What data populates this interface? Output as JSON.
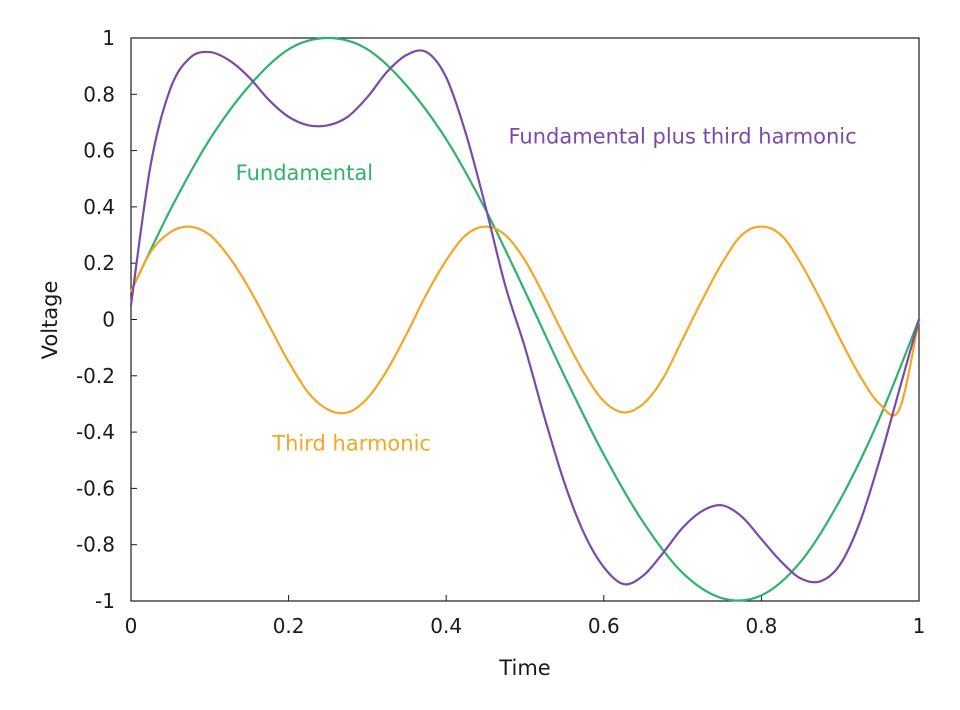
{
  "chart_data": {
    "type": "line",
    "title": "",
    "xlabel": "Time",
    "ylabel": "Voltage",
    "xlim": [
      0,
      1
    ],
    "ylim": [
      -1,
      1
    ],
    "x_ticks": [
      0,
      0.2,
      0.4,
      0.6,
      0.8,
      1
    ],
    "x_tick_labels": [
      "0",
      "0.2",
      "0.4",
      "0.6",
      "0.8",
      "1"
    ],
    "y_ticks": [
      1,
      0.8,
      0.6,
      0.4,
      0.2,
      0,
      -0.2,
      -0.4,
      -0.6,
      -0.8,
      -1
    ],
    "y_tick_labels": [
      "1",
      "0.8",
      "0.6",
      "0.4",
      "0.2",
      "0",
      "-0.2",
      "-0.4",
      "-0.6",
      "-0.8",
      "-1"
    ],
    "grid": false,
    "series": [
      {
        "name": "Fundamental",
        "color": "#2db36a",
        "x": [
          0,
          0.05,
          0.1,
          0.15,
          0.2,
          0.25,
          0.3,
          0.35,
          0.4,
          0.45,
          0.5,
          0.55,
          0.6,
          0.65,
          0.7,
          0.75,
          0.8,
          0.85,
          0.9,
          0.95,
          1
        ],
        "y": [
          0.1,
          0.39,
          0.64,
          0.83,
          0.96,
          1.0,
          0.96,
          0.83,
          0.64,
          0.39,
          0.1,
          -0.2,
          -0.48,
          -0.72,
          -0.9,
          -0.99,
          -0.98,
          -0.86,
          -0.64,
          -0.35,
          0
        ]
      },
      {
        "name": "Third harmonic",
        "color": "#f5a623",
        "x": [
          0,
          0.025,
          0.05,
          0.075,
          0.1,
          0.125,
          0.15,
          0.175,
          0.2,
          0.225,
          0.25,
          0.275,
          0.3,
          0.325,
          0.35,
          0.375,
          0.4,
          0.425,
          0.45,
          0.475,
          0.5,
          0.525,
          0.55,
          0.575,
          0.6,
          0.625,
          0.65,
          0.675,
          0.7,
          0.725,
          0.75,
          0.775,
          0.8,
          0.825,
          0.85,
          0.875,
          0.9,
          0.925,
          0.95,
          0.975,
          1
        ],
        "y": [
          0.1,
          0.24,
          0.31,
          0.33,
          0.3,
          0.22,
          0.11,
          -0.02,
          -0.15,
          -0.26,
          -0.32,
          -0.33,
          -0.28,
          -0.18,
          -0.05,
          0.09,
          0.21,
          0.3,
          0.33,
          0.3,
          0.21,
          0.08,
          -0.06,
          -0.19,
          -0.29,
          -0.33,
          -0.3,
          -0.21,
          -0.07,
          0.07,
          0.2,
          0.3,
          0.33,
          0.3,
          0.2,
          0.07,
          -0.07,
          -0.2,
          -0.3,
          -0.32,
          0
        ]
      },
      {
        "name": "Fundamental plus third harmonic",
        "color": "#7a4aa8",
        "x": [
          0,
          0.025,
          0.05,
          0.075,
          0.1,
          0.125,
          0.15,
          0.175,
          0.2,
          0.225,
          0.25,
          0.275,
          0.3,
          0.325,
          0.35,
          0.375,
          0.4,
          0.425,
          0.45,
          0.475,
          0.5,
          0.525,
          0.55,
          0.575,
          0.6,
          0.625,
          0.65,
          0.675,
          0.7,
          0.725,
          0.75,
          0.775,
          0.8,
          0.825,
          0.85,
          0.875,
          0.9,
          0.925,
          0.95,
          0.975,
          1
        ],
        "y": [
          0.05,
          0.55,
          0.82,
          0.93,
          0.95,
          0.92,
          0.86,
          0.78,
          0.72,
          0.69,
          0.69,
          0.72,
          0.79,
          0.88,
          0.94,
          0.95,
          0.86,
          0.66,
          0.4,
          0.12,
          -0.1,
          -0.35,
          -0.58,
          -0.76,
          -0.88,
          -0.94,
          -0.91,
          -0.83,
          -0.74,
          -0.68,
          -0.66,
          -0.7,
          -0.78,
          -0.86,
          -0.92,
          -0.93,
          -0.87,
          -0.72,
          -0.5,
          -0.25,
          0
        ]
      }
    ],
    "annotations": [
      {
        "text": "Fundamental",
        "series": "Fundamental",
        "x": 0.22,
        "y": 0.52
      },
      {
        "text": "Third harmonic",
        "series": "Third harmonic",
        "x": 0.28,
        "y": -0.44
      },
      {
        "text": "Fundamental plus third harmonic",
        "series": "Fundamental plus third harmonic",
        "x": 0.7,
        "y": 0.65
      }
    ]
  }
}
